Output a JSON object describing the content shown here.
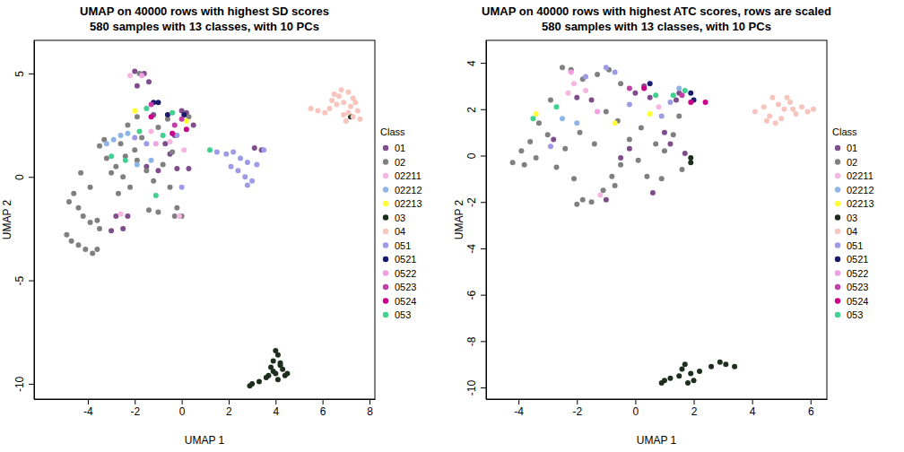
{
  "chart_data": [
    {
      "type": "scatter",
      "title": "UMAP on 40000 rows with highest SD scores",
      "subtitle": "580 samples with 13 classes, with 10 PCs",
      "x_label": "UMAP 1",
      "y_label": "UMAP 2",
      "legend_title": "Class",
      "legend": "right",
      "xlim": [
        -6.29,
        8.23
      ],
      "ylim": [
        -10.74,
        6.6
      ],
      "xticks": [
        -4,
        -2,
        0,
        2,
        4,
        6,
        8
      ],
      "yticks": [
        -10,
        -5,
        0,
        5
      ],
      "series": [
        {
          "name": "01",
          "color": "#7e4e8c",
          "x": [
            -2.0,
            -1.6,
            -1.9,
            -1.4,
            -1.2,
            -0.7,
            -1.0,
            -0.2,
            0.3,
            -0.5,
            -2.5,
            -2.8,
            -2.3,
            -3.0,
            0,
            0.2,
            -0.3,
            -1.5,
            3.1,
            3.4,
            0.5
          ],
          "values": [
            5.1,
            5.0,
            4.4,
            4.6,
            3.0,
            1.6,
            0.3,
            0.4,
            0.4,
            1.1,
            -2.5,
            -1.9,
            -1.9,
            -2.6,
            3.2,
            3.1,
            2.0,
            0.5,
            1.4,
            1.3,
            2.5
          ]
        },
        {
          "name": "02",
          "color": "#808080",
          "x": [
            -4.6,
            -4.8,
            -4.4,
            -4.2,
            -3.9,
            -3.5,
            -4.9,
            -4.7,
            -4.4,
            -4.1,
            -3.8,
            -3.6,
            -3.9,
            -4.3,
            -3.5,
            -3.2,
            -2.8,
            -2.5,
            -2.2,
            -1.9,
            -1.5,
            -1.2,
            -0.8,
            -0.5,
            -0.2,
            0,
            -0.3,
            -1.0,
            -1.4,
            -2.0,
            -2.6,
            -1.7,
            -1.0,
            -0.6,
            -1.9,
            -2.3,
            -3.0,
            -2.7,
            -0.4,
            0.3,
            -1.8,
            -3.6,
            -2.4,
            -3.3
          ],
          "values": [
            -0.8,
            -1.2,
            -1.5,
            -1.9,
            -2.2,
            -2.5,
            -2.8,
            -3.1,
            -3.3,
            -3.5,
            -3.7,
            -3.5,
            -0.5,
            0.2,
            1.5,
            0.9,
            0.5,
            0.0,
            -0.5,
            0.8,
            0.3,
            -0.2,
            0.6,
            -0.5,
            -1.5,
            -1.9,
            -1.9,
            -1.7,
            -1.6,
            1.3,
            1.6,
            1.9,
            2.4,
            2.8,
            2.9,
            2.5,
            0.2,
            -0.8,
            1.2,
            2.9,
            5.0,
            -2.1,
            1.0,
            1.8
          ]
        },
        {
          "name": "02211",
          "color": "#f7b6e0",
          "x": [
            -2.6,
            -2.2,
            -0.5,
            0.1,
            -1.3,
            -0.1
          ],
          "values": [
            -1.8,
            4.9,
            1.7,
            1.3,
            2.2,
            -1.9
          ]
        },
        {
          "name": "02212",
          "color": "#8fb5e8",
          "x": [
            -3.2,
            -2.9,
            -2.6,
            -2.3,
            -1.9,
            -1.3
          ],
          "values": [
            1.6,
            1.8,
            2.0,
            2.1,
            0.6,
            0.8
          ]
        },
        {
          "name": "02213",
          "color": "#ffff33",
          "x": [
            -2.0,
            -0.6,
            0.2
          ],
          "values": [
            3.2,
            3.0,
            2.7
          ]
        },
        {
          "name": "03",
          "color": "#1e2e1e",
          "x": [
            4.0,
            4.1,
            3.9,
            4.2,
            3.8,
            4.3,
            4.0,
            3.7,
            4.4,
            4.1,
            3.6,
            3.3,
            3.0,
            2.9,
            4.2,
            3.9,
            4.5,
            7.2
          ],
          "values": [
            -8.4,
            -8.6,
            -8.9,
            -9.0,
            -9.2,
            -9.3,
            -9.5,
            -9.6,
            -9.6,
            -9.8,
            -9.7,
            -9.9,
            -10.0,
            -10.1,
            -9.1,
            -9.4,
            -9.5,
            2.9
          ]
        },
        {
          "name": "04",
          "color": "#f8c4be",
          "x": [
            6.5,
            6.8,
            7.1,
            7.3,
            6.9,
            6.6,
            7.2,
            7.5,
            6.3,
            5.5,
            5.8,
            6.1,
            6.9,
            7.3,
            7.6,
            7.0,
            6.7,
            7.4,
            6.4,
            7.1
          ],
          "values": [
            4.0,
            4.2,
            4.1,
            3.8,
            3.6,
            3.5,
            3.4,
            3.2,
            3.3,
            3.3,
            3.2,
            3.1,
            3.0,
            2.9,
            2.8,
            2.7,
            3.9,
            3.6,
            3.7,
            3.1
          ]
        },
        {
          "name": "051",
          "color": "#9e9ae8",
          "x": [
            1.9,
            2.2,
            2.5,
            2.8,
            2.4,
            2.7,
            3.0,
            2.8,
            3.2,
            3.5,
            2.1,
            1.5,
            -1.5,
            -2.0,
            -0.2,
            0.0
          ],
          "values": [
            1.1,
            1.2,
            0.9,
            0.7,
            0.3,
            0.0,
            -0.2,
            -0.4,
            0.6,
            1.3,
            0.5,
            1.2,
            1.6,
            1.9,
            2.0,
            -0.5
          ]
        },
        {
          "name": "0521",
          "color": "#1a1a6e",
          "x": [
            -1.2,
            -1.0,
            -0.6,
            0.1
          ],
          "values": [
            3.6,
            3.6,
            3.0,
            3.0
          ]
        },
        {
          "name": "0522",
          "color": "#f0a0e0",
          "x": [
            -1.7,
            -1.1
          ],
          "values": [
            4.9,
            1.6
          ]
        },
        {
          "name": "0523",
          "color": "#c040a8",
          "x": [
            -1.3,
            0.0,
            -0.3
          ],
          "values": [
            3.5,
            2.8,
            2.5
          ]
        },
        {
          "name": "0524",
          "color": "#cc0088",
          "x": [
            -1.3,
            -0.4,
            0.2
          ],
          "values": [
            2.9,
            2.1,
            2.3
          ]
        },
        {
          "name": "053",
          "color": "#40d090",
          "x": [
            -3.0,
            -2.4,
            -1.5,
            -1.8,
            -1.1,
            -0.4,
            1.2,
            -0.8
          ],
          "values": [
            1.0,
            0.8,
            3.3,
            2.2,
            -0.9,
            3.1,
            1.3,
            2.0
          ]
        }
      ]
    },
    {
      "type": "scatter",
      "title": "UMAP on 40000 rows with highest ATC scores, rows are scaled",
      "subtitle": "580 samples with 13 classes, with 10 PCs",
      "x_label": "UMAP 1",
      "y_label": "UMAP 2",
      "legend_title": "Class",
      "legend": "right",
      "xlim": [
        -5.11,
        6.56
      ],
      "ylim": [
        -10.5,
        4.97
      ],
      "xticks": [
        -4,
        -2,
        0,
        2,
        4,
        6
      ],
      "yticks": [
        -10,
        -8,
        -6,
        -4,
        -2,
        0,
        2,
        4
      ],
      "series": [
        {
          "name": "01",
          "color": "#7e4e8c",
          "x": [
            -2.0,
            -1.5,
            -0.5,
            0.0,
            0.3,
            0.5,
            1.0,
            1.2,
            1.4,
            1.5,
            -0.2,
            0.6,
            1.7,
            -1.0,
            -2.8
          ],
          "values": [
            2.5,
            2.4,
            -0.1,
            2.7,
            3.0,
            2.5,
            1.0,
            0.5,
            2.4,
            2.7,
            0.3,
            -1.6,
            0.1,
            -1.9,
            0.7
          ]
        },
        {
          "name": "02",
          "color": "#808080",
          "x": [
            -4.2,
            -3.9,
            -3.6,
            -3.4,
            -3.0,
            -2.7,
            -2.4,
            -2.1,
            -1.8,
            -1.5,
            -1.1,
            -0.8,
            -0.5,
            -0.2,
            0.1,
            0.4,
            0.7,
            1.0,
            1.3,
            1.6,
            -2.5,
            -2.2,
            -1.8,
            -1.3,
            -0.9,
            -0.5,
            -2.9,
            -3.3,
            -1.9,
            -1.4,
            -1.0,
            -0.6,
            0.2,
            -3.8,
            -2.0,
            -0.7,
            0.9,
            1.5
          ],
          "values": [
            -0.3,
            0.2,
            0.6,
            -0.1,
            0.9,
            -0.5,
            0.3,
            -1.0,
            -1.9,
            -2.0,
            -1.5,
            -0.9,
            -0.4,
            0.7,
            -0.2,
            -0.9,
            0.5,
            0.2,
            0.9,
            -0.6,
            3.8,
            3.7,
            3.3,
            3.5,
            3.7,
            3.1,
            2.4,
            1.4,
            1.0,
            0.5,
            1.9,
            1.5,
            1.2,
            -0.4,
            -2.1,
            -1.3,
            -1.0,
            1.7
          ]
        },
        {
          "name": "02211",
          "color": "#f7b6e0",
          "x": [
            -2.3,
            -1.7,
            -1.2,
            -2.1,
            0.8
          ],
          "values": [
            2.7,
            2.8,
            -1.7,
            3.1,
            2.1
          ]
        },
        {
          "name": "02212",
          "color": "#8fb5e8",
          "x": [
            -2.5,
            -2.0,
            1.5
          ],
          "values": [
            1.6,
            1.4,
            2.9
          ]
        },
        {
          "name": "02213",
          "color": "#ffff33",
          "x": [
            0.5,
            -0.7,
            -3.4
          ],
          "values": [
            1.8,
            1.4,
            1.8
          ]
        },
        {
          "name": "03",
          "color": "#1e2e1e",
          "x": [
            0.9,
            1.0,
            1.2,
            1.5,
            1.6,
            1.7,
            1.9,
            2.0,
            2.2,
            2.6,
            2.9,
            3.1,
            3.4,
            1.8,
            1.9,
            1.9
          ],
          "values": [
            -9.8,
            -9.7,
            -9.6,
            -9.5,
            -9.2,
            -9.0,
            -9.4,
            -9.7,
            -9.3,
            -9.1,
            -8.9,
            -9.0,
            -9.1,
            -9.8,
            -0.1,
            -0.3
          ]
        },
        {
          "name": "04",
          "color": "#f8c4be",
          "x": [
            4.1,
            4.4,
            4.6,
            4.8,
            4.9,
            5.1,
            5.3,
            5.5,
            5.7,
            5.9,
            6.1,
            4.7,
            5.0,
            5.4,
            4.5,
            5.2
          ],
          "values": [
            1.9,
            2.1,
            1.7,
            1.4,
            2.2,
            2.0,
            2.3,
            1.8,
            2.1,
            1.9,
            2.0,
            2.5,
            1.6,
            2.0,
            1.5,
            2.5
          ]
        },
        {
          "name": "051",
          "color": "#9e9ae8",
          "x": [
            -1.0,
            -0.7,
            -1.7,
            -2.9,
            1.2,
            0.9,
            -0.2
          ],
          "values": [
            3.8,
            3.6,
            3.4,
            0.4,
            2.3,
            1.7,
            2.2
          ]
        },
        {
          "name": "0521",
          "color": "#1a1a6e",
          "x": [
            1.9,
            2.0,
            0.5
          ],
          "values": [
            2.7,
            2.4,
            3.1
          ]
        },
        {
          "name": "0522",
          "color": "#f0a0e0",
          "x": [
            -2.2,
            -1.3
          ],
          "values": [
            3.6,
            1.9
          ]
        },
        {
          "name": "0523",
          "color": "#c040a8",
          "x": [
            1.6,
            -0.2
          ],
          "values": [
            2.6,
            2.9
          ]
        },
        {
          "name": "0524",
          "color": "#cc0088",
          "x": [
            0.3,
            1.9,
            2.4
          ],
          "values": [
            2.9,
            2.3,
            2.3
          ]
        },
        {
          "name": "053",
          "color": "#40d090",
          "x": [
            -3.5,
            -2.7,
            1.3,
            0.7,
            1.7
          ],
          "values": [
            1.6,
            2.1,
            2.6,
            2.6,
            2.8
          ]
        }
      ]
    }
  ]
}
